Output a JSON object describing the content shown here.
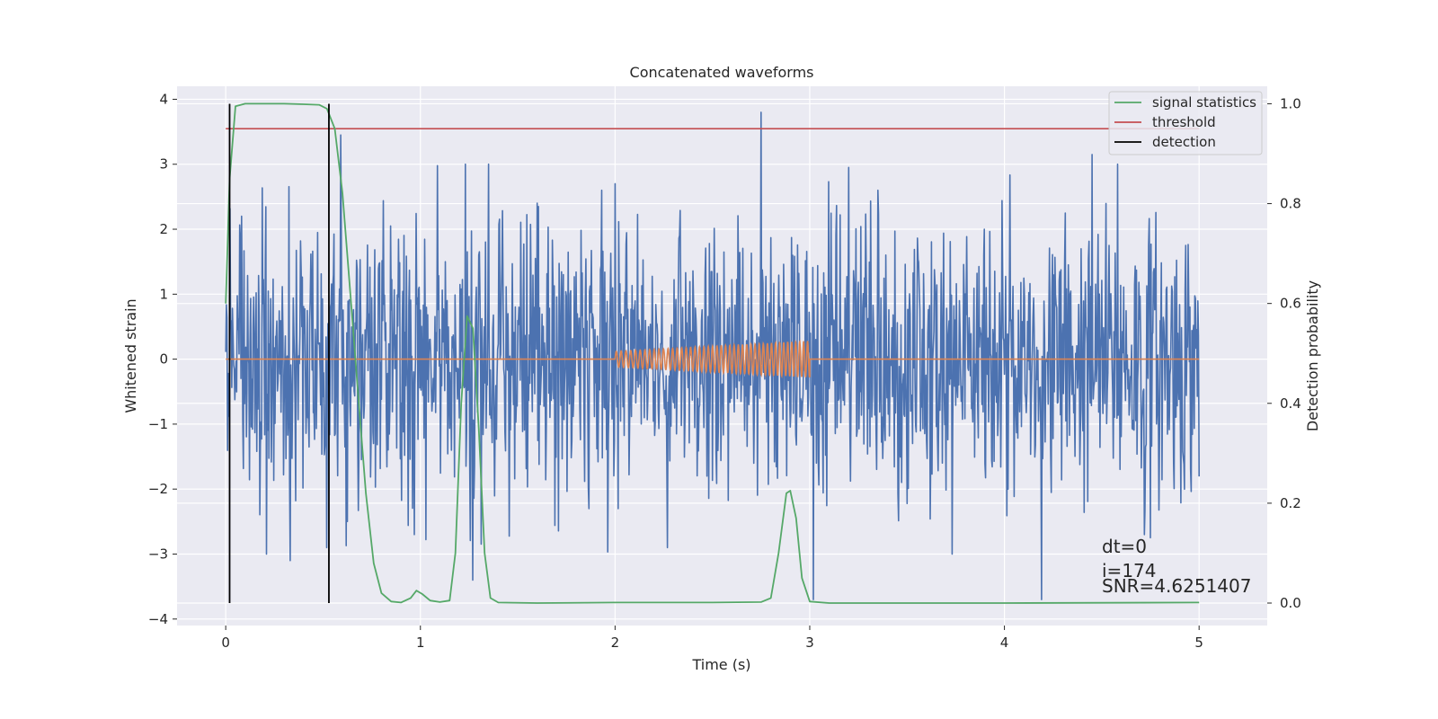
{
  "chart_data": {
    "type": "line",
    "title": "Concatenated waveforms",
    "xlabel": "Time (s)",
    "ylabel": "Whitened strain",
    "ylabel_right": "Detection probability",
    "xlim": [
      -0.25,
      5.35
    ],
    "ylim": [
      -4.1,
      4.2
    ],
    "ylim_right": [
      -0.045,
      1.035
    ],
    "x_ticks": [
      0,
      1,
      2,
      3,
      4,
      5
    ],
    "y_ticks": [
      -4,
      -3,
      -2,
      -1,
      0,
      1,
      2,
      3,
      4
    ],
    "y_ticks_right": [
      0.0,
      0.2,
      0.4,
      0.6,
      0.8,
      1.0
    ],
    "x_tick_labels": [
      "0",
      "1",
      "2",
      "3",
      "4",
      "5"
    ],
    "y_tick_labels": [
      "−4",
      "−3",
      "−2",
      "−1",
      "0",
      "1",
      "2",
      "3",
      "4"
    ],
    "y_tick_labels_right": [
      "0.0",
      "0.2",
      "0.4",
      "0.6",
      "0.8",
      "1.0"
    ],
    "grid": true,
    "legend_position": "top-right",
    "colors": {
      "background": "#eaeaf2",
      "grid": "#ffffff",
      "strain": "#4c72b0",
      "injected": "#dd8452",
      "signal_statistics": "#55a868",
      "threshold": "#c44e52",
      "detection": "#000000"
    },
    "series": [
      {
        "name": "signal statistics",
        "axis": "right",
        "points": [
          [
            0,
            0.6
          ],
          [
            0.02,
            0.85
          ],
          [
            0.05,
            0.995
          ],
          [
            0.1,
            1.0
          ],
          [
            0.2,
            1.0
          ],
          [
            0.3,
            1.0
          ],
          [
            0.4,
            0.999
          ],
          [
            0.48,
            0.998
          ],
          [
            0.52,
            0.99
          ],
          [
            0.56,
            0.95
          ],
          [
            0.6,
            0.82
          ],
          [
            0.64,
            0.62
          ],
          [
            0.68,
            0.42
          ],
          [
            0.72,
            0.22
          ],
          [
            0.76,
            0.08
          ],
          [
            0.8,
            0.02
          ],
          [
            0.85,
            0.003
          ],
          [
            0.9,
            0.001
          ],
          [
            0.95,
            0.01
          ],
          [
            0.98,
            0.025
          ],
          [
            1.01,
            0.018
          ],
          [
            1.05,
            0.005
          ],
          [
            1.1,
            0.002
          ],
          [
            1.15,
            0.005
          ],
          [
            1.18,
            0.1
          ],
          [
            1.21,
            0.4
          ],
          [
            1.24,
            0.575
          ],
          [
            1.27,
            0.55
          ],
          [
            1.3,
            0.35
          ],
          [
            1.33,
            0.1
          ],
          [
            1.36,
            0.01
          ],
          [
            1.4,
            0.001
          ],
          [
            1.6,
            0.0
          ],
          [
            2.0,
            0.001
          ],
          [
            2.5,
            0.001
          ],
          [
            2.75,
            0.002
          ],
          [
            2.8,
            0.01
          ],
          [
            2.84,
            0.1
          ],
          [
            2.88,
            0.22
          ],
          [
            2.9,
            0.225
          ],
          [
            2.93,
            0.17
          ],
          [
            2.96,
            0.05
          ],
          [
            3.0,
            0.003
          ],
          [
            3.1,
            0.0
          ],
          [
            4.0,
            0.0
          ],
          [
            5.0,
            0.001
          ]
        ]
      },
      {
        "name": "threshold",
        "axis": "right",
        "points": [
          [
            0,
            0.95
          ],
          [
            5.0,
            0.95
          ]
        ]
      },
      {
        "name": "detection",
        "axis": "right",
        "segments": [
          {
            "x": 0.02,
            "y0": 0.0,
            "y1": 1.0
          },
          {
            "x": 0.53,
            "y0": 0.0,
            "y1": 1.0
          }
        ]
      },
      {
        "name": "",
        "axis": "left",
        "kind": "noise",
        "x_range": [
          0,
          5.0
        ],
        "sigma": 1.05,
        "spikes": [
          [
            0.52,
            -2.9
          ],
          [
            0.59,
            3.45
          ],
          [
            0.97,
            -2.7
          ],
          [
            1.23,
            3.0
          ],
          [
            1.27,
            -3.4
          ],
          [
            1.35,
            3.0
          ],
          [
            2.0,
            2.7
          ],
          [
            2.27,
            -2.9
          ],
          [
            2.75,
            3.8
          ],
          [
            3.02,
            -3.7
          ],
          [
            4.19,
            -3.7
          ],
          [
            4.45,
            3.15
          ],
          [
            4.58,
            3.0
          ],
          [
            4.72,
            -2.7
          ],
          [
            1.93,
            2.6
          ],
          [
            3.35,
            2.6
          ],
          [
            0.08,
            2.2
          ],
          [
            1.6,
            2.4
          ],
          [
            0.21,
            -3.0
          ],
          [
            0.33,
            -3.1
          ],
          [
            3.73,
            -3.0
          ]
        ]
      },
      {
        "name": "",
        "axis": "left",
        "kind": "chirp",
        "x_range": [
          2.0,
          3.0
        ],
        "amp_start": 0.12,
        "amp_end": 0.28,
        "cycles": 40
      }
    ],
    "annotations": [
      "dt=0",
      "i=174",
      "SNR=4.6251407"
    ]
  }
}
